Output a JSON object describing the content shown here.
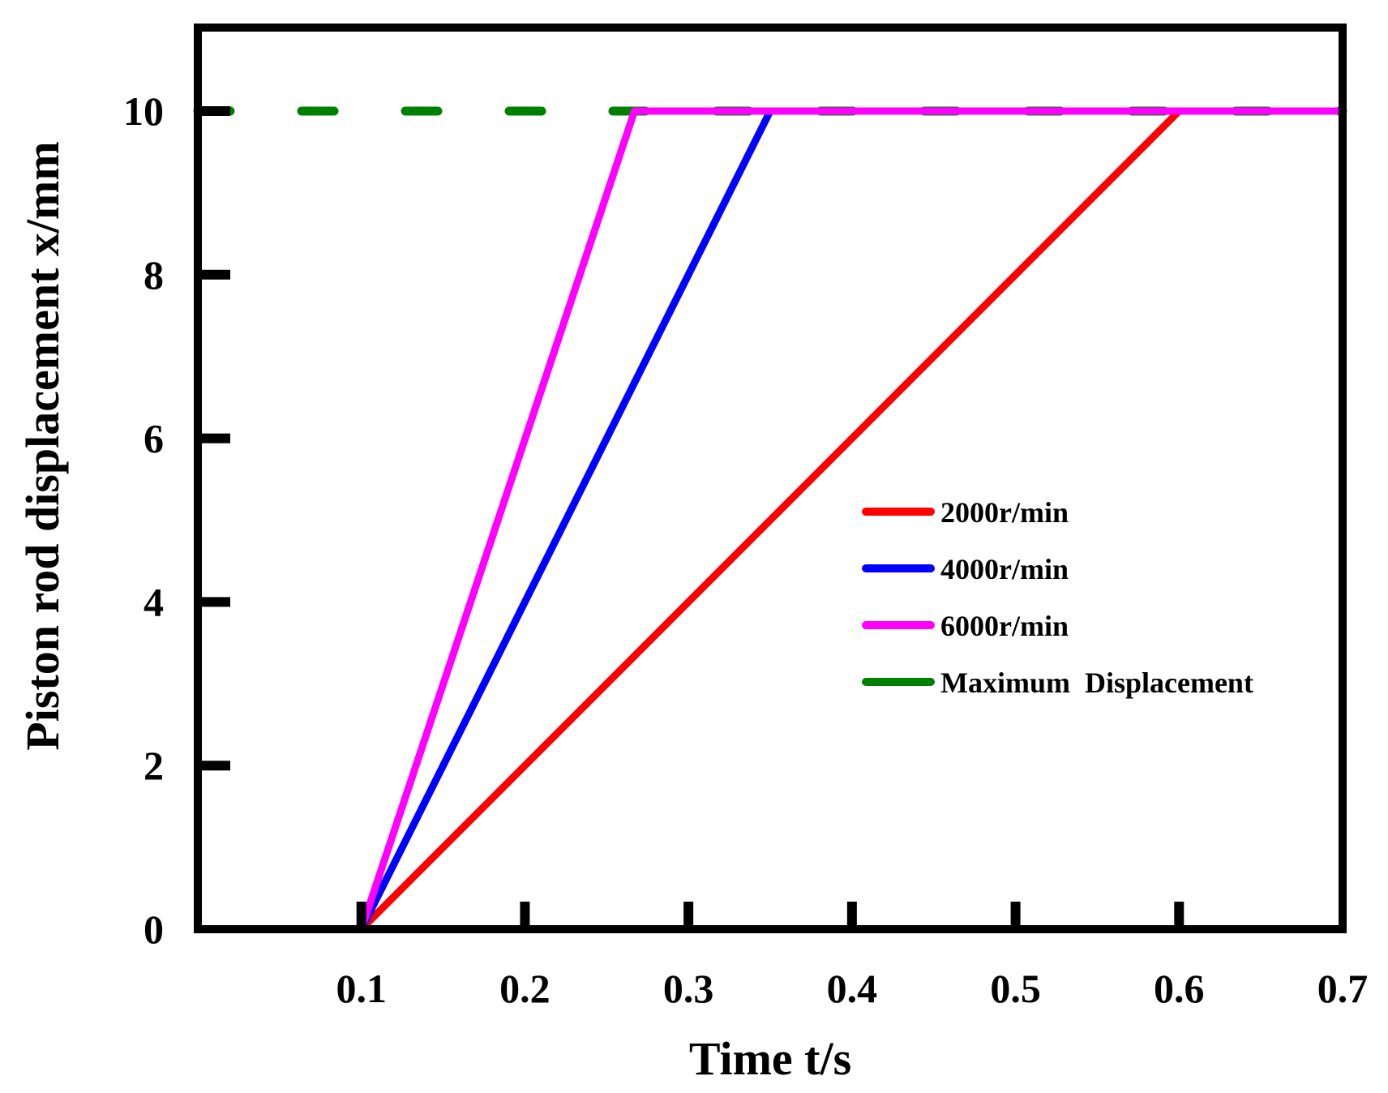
{
  "chart_data": {
    "type": "line",
    "title": "",
    "xlabel": "Time t/s",
    "ylabel": "Piston rod displacement x/mm",
    "xlim": [
      0,
      0.7
    ],
    "ylim": [
      0,
      11
    ],
    "grid": false,
    "legend_position": "center-right",
    "x_ticks": [
      {
        "value": 0.1,
        "label": "0.1"
      },
      {
        "value": 0.2,
        "label": "0.2"
      },
      {
        "value": 0.3,
        "label": "0.3"
      },
      {
        "value": 0.4,
        "label": "0.4"
      },
      {
        "value": 0.5,
        "label": "0.5"
      },
      {
        "value": 0.6,
        "label": "0.6"
      },
      {
        "value": 0.7,
        "label": "0.7"
      }
    ],
    "y_ticks": [
      {
        "value": 0,
        "label": "0"
      },
      {
        "value": 2,
        "label": "2"
      },
      {
        "value": 4,
        "label": "4"
      },
      {
        "value": 6,
        "label": "6"
      },
      {
        "value": 8,
        "label": "8"
      },
      {
        "value": 10,
        "label": "10"
      }
    ],
    "series": [
      {
        "name": "2000r/min",
        "color": "#ff0000",
        "style": "solid",
        "x": [
          0,
          0.1,
          0.6,
          0.7
        ],
        "y": [
          0,
          0,
          10,
          10
        ]
      },
      {
        "name": "4000r/min",
        "color": "#0000ff",
        "style": "solid",
        "x": [
          0,
          0.1,
          0.35,
          0.7
        ],
        "y": [
          0,
          0,
          10,
          10
        ]
      },
      {
        "name": "6000r/min",
        "color": "#ff00ff",
        "style": "solid",
        "x": [
          0,
          0.1,
          0.267,
          0.7
        ],
        "y": [
          0,
          0,
          10,
          10
        ]
      },
      {
        "name": "Maximum  Displacement",
        "color": "#008000",
        "style": "dashed",
        "x": [
          0,
          0.7
        ],
        "y": [
          10,
          10
        ]
      }
    ]
  }
}
